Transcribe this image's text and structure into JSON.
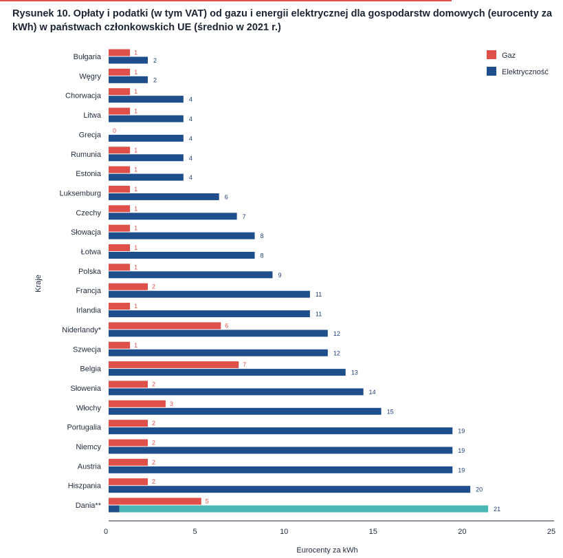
{
  "title": "Rysunek 10. Opłaty i podatki (w tym VAT) od gazu i energii elektrycznej dla gospodarstw domowych (eurocenty za kWh) w państwach członkowskich UE (średnio w 2021 r.)",
  "colors": {
    "gas": "#e0504a",
    "electricity": "#1f4e8c",
    "highlight": "#4ab8b4",
    "gas_label": "#e0504a",
    "electricity_label": "#1d3f7a"
  },
  "chart_data": {
    "type": "bar",
    "orientation": "horizontal",
    "categories": [
      "Bułgaria",
      "Węgry",
      "Chorwacja",
      "Litwa",
      "Grecja",
      "Rumunia",
      "Estonia",
      "Luksemburg",
      "Czechy",
      "Słowacja",
      "Łotwa",
      "Polska",
      "Francja",
      "Irlandia",
      "Niderlandy*",
      "Szwecja",
      "Belgia",
      "Słowenia",
      "Włochy",
      "Portugalia",
      "Niemcy",
      "Austria",
      "Hiszpania",
      "Dania**"
    ],
    "series": [
      {
        "name": "Gaz",
        "values": [
          1.2,
          1.2,
          1.2,
          1.2,
          0,
          1.2,
          1.2,
          1.2,
          1.2,
          1.2,
          1.2,
          1.2,
          2.2,
          1.2,
          6.3,
          1.2,
          7.3,
          2.2,
          3.2,
          2.2,
          2.2,
          2.2,
          2.2,
          5.2
        ],
        "labels": [
          "1",
          "1",
          "1",
          "1",
          "0",
          "1",
          "1",
          "1",
          "1",
          "1",
          "1",
          "1",
          "2",
          "1",
          "6",
          "1",
          "7",
          "2",
          "3",
          "2",
          "2",
          "2",
          "2",
          "5"
        ]
      },
      {
        "name": "Elektryczność",
        "values": [
          2.2,
          2.2,
          4.2,
          4.2,
          4.2,
          4.2,
          4.2,
          6.2,
          7.2,
          8.2,
          8.2,
          9.2,
          11.3,
          11.3,
          12.3,
          12.3,
          13.3,
          14.3,
          15.3,
          19.3,
          19.3,
          19.3,
          20.3,
          21.3
        ],
        "labels": [
          "2",
          "2",
          "4",
          "4",
          "4",
          "4",
          "4",
          "6",
          "7",
          "8",
          "8",
          "9",
          "11",
          "11",
          "12",
          "12",
          "13",
          "14",
          "15",
          "19",
          "19",
          "19",
          "20",
          "21"
        ]
      }
    ],
    "highlight": {
      "category": "Dania**",
      "series": "Elektryczność",
      "segment_start": 0.6
    },
    "xlabel": "Eurocenty za kWh",
    "ylabel": "Kraje",
    "xlim": [
      0,
      25
    ],
    "xticks": [
      "0",
      "5",
      "10",
      "15",
      "20",
      "25"
    ],
    "legend": {
      "position": "top-right",
      "entries": [
        "Gaz",
        "Elektryczność"
      ]
    },
    "grid": false
  }
}
